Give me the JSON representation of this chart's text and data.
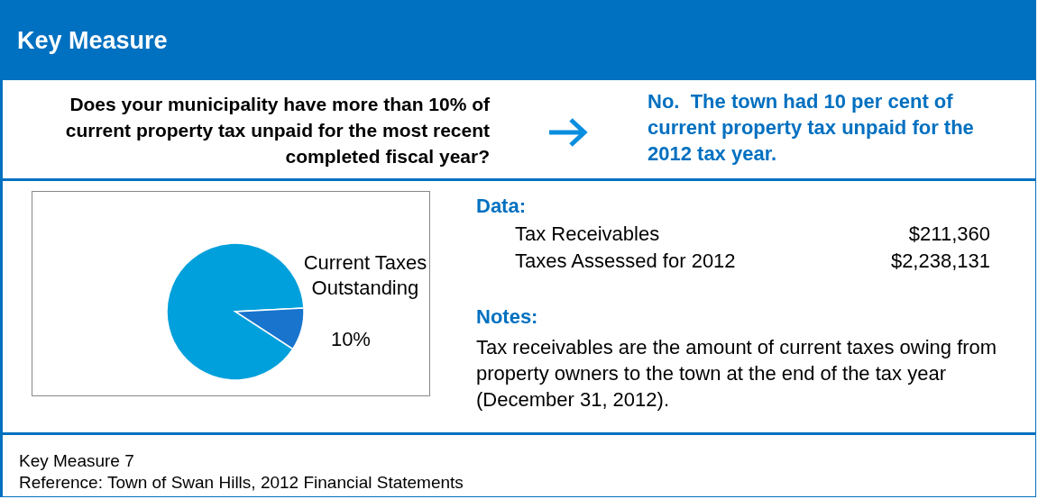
{
  "chart_data": {
    "type": "pie",
    "title": "Key Measure",
    "categories": [
      null,
      "Current Taxes Outstanding"
    ],
    "values": [
      90,
      10
    ],
    "colors": [
      "#00a0dc",
      "#1874cd"
    ],
    "value_labels": [
      null,
      "10%"
    ],
    "annotations": [
      "Does your municipality have more than 10% of current property tax unpaid for the most recent completed fiscal year?",
      "No.  The town had 10 per cent of current property tax unpaid for the 2012 tax year.",
      "Data:",
      "Tax Receivables",
      "$211,360",
      "Taxes Assessed for 2012",
      "$2,238,131",
      "Notes:",
      "Tax receivables are the amount of current taxes owing from property owners to the town at the end of the tax year (December 31, 2012).",
      "Key Measure 7",
      "Reference: Town of Swan Hills, 2012 Financial Statements"
    ]
  }
}
